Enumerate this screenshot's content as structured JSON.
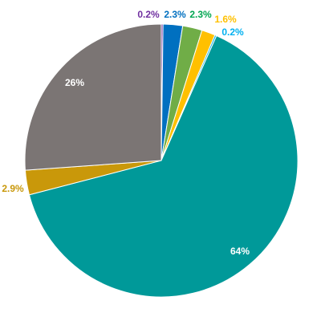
{
  "chart_data": {
    "type": "pie",
    "title": "",
    "slices": [
      {
        "value": 0.2,
        "label": "0.2%",
        "color": "#7030A0",
        "label_color": "#7030A0",
        "label_side": "outside"
      },
      {
        "value": 2.3,
        "label": "2.3%",
        "color": "#0070C0",
        "label_color": "#0070C0",
        "label_side": "outside"
      },
      {
        "value": 2.3,
        "label": "2.3%",
        "color": "#70AD47",
        "label_color": "#00A651",
        "label_side": "outside"
      },
      {
        "value": 1.6,
        "label": "1.6%",
        "color": "#FFC000",
        "label_color": "#FFC000",
        "label_side": "outside"
      },
      {
        "value": 0.2,
        "label": "0.2%",
        "color": "#00B0F0",
        "label_color": "#00B0F0",
        "label_side": "outside"
      },
      {
        "value": 64,
        "label": "64%",
        "color": "#009999",
        "label_color": "#FFFFFF",
        "label_side": "inside"
      },
      {
        "value": 2.9,
        "label": "2.9%",
        "color": "#C9980A",
        "label_color": "#C9980A",
        "label_side": "outside"
      },
      {
        "value": 26,
        "label": "26%",
        "color": "#7B7574",
        "label_color": "#FFFFFF",
        "label_side": "inside"
      }
    ],
    "start_angle_deg": 0,
    "direction": "clockwise"
  }
}
